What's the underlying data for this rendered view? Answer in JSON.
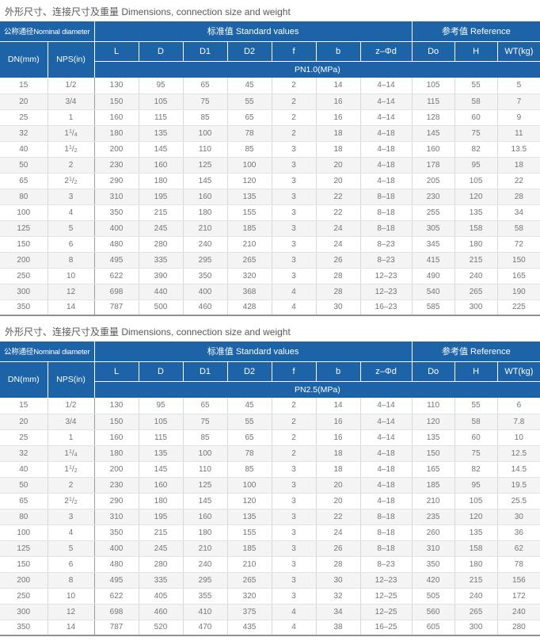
{
  "section_title": "外形尺寸、连接尺寸及重量 Dimensions, connection size and weight",
  "colors": {
    "header_blue": "#1c64a7",
    "header_text": "#ffffff",
    "body_text": "#737577",
    "alt_row_bg": "#f4f4f5",
    "grid_line": "#d9d9d9",
    "group_divider": "#9a9a9a",
    "table_bottom_border": "#8d9094"
  },
  "table_header": {
    "nominal_group": "公称通径Nominal diameter",
    "standard_group": "标准值 Standard values",
    "reference_group": "参考值 Reference",
    "columns": {
      "dn": "DN(mm)",
      "nps": "NPS(in)",
      "l": "L",
      "d": "D",
      "d1": "D1",
      "d2": "D2",
      "f": "f",
      "b": "b",
      "zphid": "z–Φd",
      "do": "Do",
      "h": "H",
      "wt": "WT(kg)"
    }
  },
  "tables": [
    {
      "pn_label": "PN1.0(MPa)",
      "rows": [
        [
          "15",
          "1/2",
          "130",
          "95",
          "65",
          "45",
          "2",
          "14",
          "4–14",
          "105",
          "55",
          "5"
        ],
        [
          "20",
          "3/4",
          "150",
          "105",
          "75",
          "55",
          "2",
          "16",
          "4–14",
          "115",
          "58",
          "7"
        ],
        [
          "25",
          "1",
          "160",
          "115",
          "85",
          "65",
          "2",
          "16",
          "4–14",
          "128",
          "60",
          "9"
        ],
        [
          "32",
          "1 1/4",
          "180",
          "135",
          "100",
          "78",
          "2",
          "18",
          "4–18",
          "145",
          "75",
          "11"
        ],
        [
          "40",
          "1 1/2",
          "200",
          "145",
          "110",
          "85",
          "3",
          "18",
          "4–18",
          "160",
          "82",
          "13.5"
        ],
        [
          "50",
          "2",
          "230",
          "160",
          "125",
          "100",
          "3",
          "20",
          "4–18",
          "178",
          "95",
          "18"
        ],
        [
          "65",
          "2 1/2",
          "290",
          "180",
          "145",
          "120",
          "3",
          "20",
          "4–18",
          "205",
          "105",
          "22"
        ],
        [
          "80",
          "3",
          "310",
          "195",
          "160",
          "135",
          "3",
          "22",
          "8–18",
          "230",
          "120",
          "28"
        ],
        [
          "100",
          "4",
          "350",
          "215",
          "180",
          "155",
          "3",
          "22",
          "8–18",
          "255",
          "135",
          "34"
        ],
        [
          "125",
          "5",
          "400",
          "245",
          "210",
          "185",
          "3",
          "24",
          "8–18",
          "305",
          "158",
          "58"
        ],
        [
          "150",
          "6",
          "480",
          "280",
          "240",
          "210",
          "3",
          "24",
          "8–23",
          "345",
          "180",
          "72"
        ],
        [
          "200",
          "8",
          "495",
          "335",
          "295",
          "265",
          "3",
          "26",
          "8–23",
          "415",
          "215",
          "150"
        ],
        [
          "250",
          "10",
          "622",
          "390",
          "350",
          "320",
          "3",
          "28",
          "12–23",
          "490",
          "240",
          "165"
        ],
        [
          "300",
          "12",
          "698",
          "440",
          "400",
          "368",
          "4",
          "28",
          "12–23",
          "540",
          "265",
          "190"
        ],
        [
          "350",
          "14",
          "787",
          "500",
          "460",
          "428",
          "4",
          "30",
          "16–23",
          "585",
          "300",
          "225"
        ]
      ]
    },
    {
      "pn_label": "PN2.5(MPa)",
      "rows": [
        [
          "15",
          "1/2",
          "130",
          "95",
          "65",
          "45",
          "2",
          "14",
          "4–14",
          "110",
          "55",
          "6"
        ],
        [
          "20",
          "3/4",
          "150",
          "105",
          "75",
          "55",
          "2",
          "16",
          "4–14",
          "120",
          "58",
          "7.8"
        ],
        [
          "25",
          "1",
          "160",
          "115",
          "85",
          "65",
          "2",
          "16",
          "4–14",
          "135",
          "60",
          "10"
        ],
        [
          "32",
          "1 1/4",
          "180",
          "135",
          "100",
          "78",
          "2",
          "18",
          "4–18",
          "150",
          "75",
          "12.5"
        ],
        [
          "40",
          "1 1/2",
          "200",
          "145",
          "110",
          "85",
          "3",
          "18",
          "4–18",
          "165",
          "82",
          "14.5"
        ],
        [
          "50",
          "2",
          "230",
          "160",
          "125",
          "100",
          "3",
          "20",
          "4–18",
          "185",
          "95",
          "19.5"
        ],
        [
          "65",
          "2 1/2",
          "290",
          "180",
          "145",
          "120",
          "3",
          "20",
          "4–18",
          "210",
          "105",
          "25.5"
        ],
        [
          "80",
          "3",
          "310",
          "195",
          "160",
          "135",
          "3",
          "22",
          "8–18",
          "235",
          "120",
          "30"
        ],
        [
          "100",
          "4",
          "350",
          "215",
          "180",
          "155",
          "3",
          "24",
          "8–18",
          "260",
          "135",
          "36"
        ],
        [
          "125",
          "5",
          "400",
          "245",
          "210",
          "185",
          "3",
          "26",
          "8–18",
          "310",
          "158",
          "62"
        ],
        [
          "150",
          "6",
          "480",
          "280",
          "240",
          "210",
          "3",
          "28",
          "8–23",
          "350",
          "180",
          "78"
        ],
        [
          "200",
          "8",
          "495",
          "335",
          "295",
          "265",
          "3",
          "30",
          "12–23",
          "420",
          "215",
          "156"
        ],
        [
          "250",
          "10",
          "622",
          "405",
          "355",
          "320",
          "3",
          "32",
          "12–25",
          "505",
          "240",
          "172"
        ],
        [
          "300",
          "12",
          "698",
          "460",
          "410",
          "375",
          "4",
          "34",
          "12–25",
          "560",
          "265",
          "240"
        ],
        [
          "350",
          "14",
          "787",
          "520",
          "470",
          "435",
          "4",
          "38",
          "16–25",
          "605",
          "300",
          "280"
        ]
      ]
    }
  ]
}
